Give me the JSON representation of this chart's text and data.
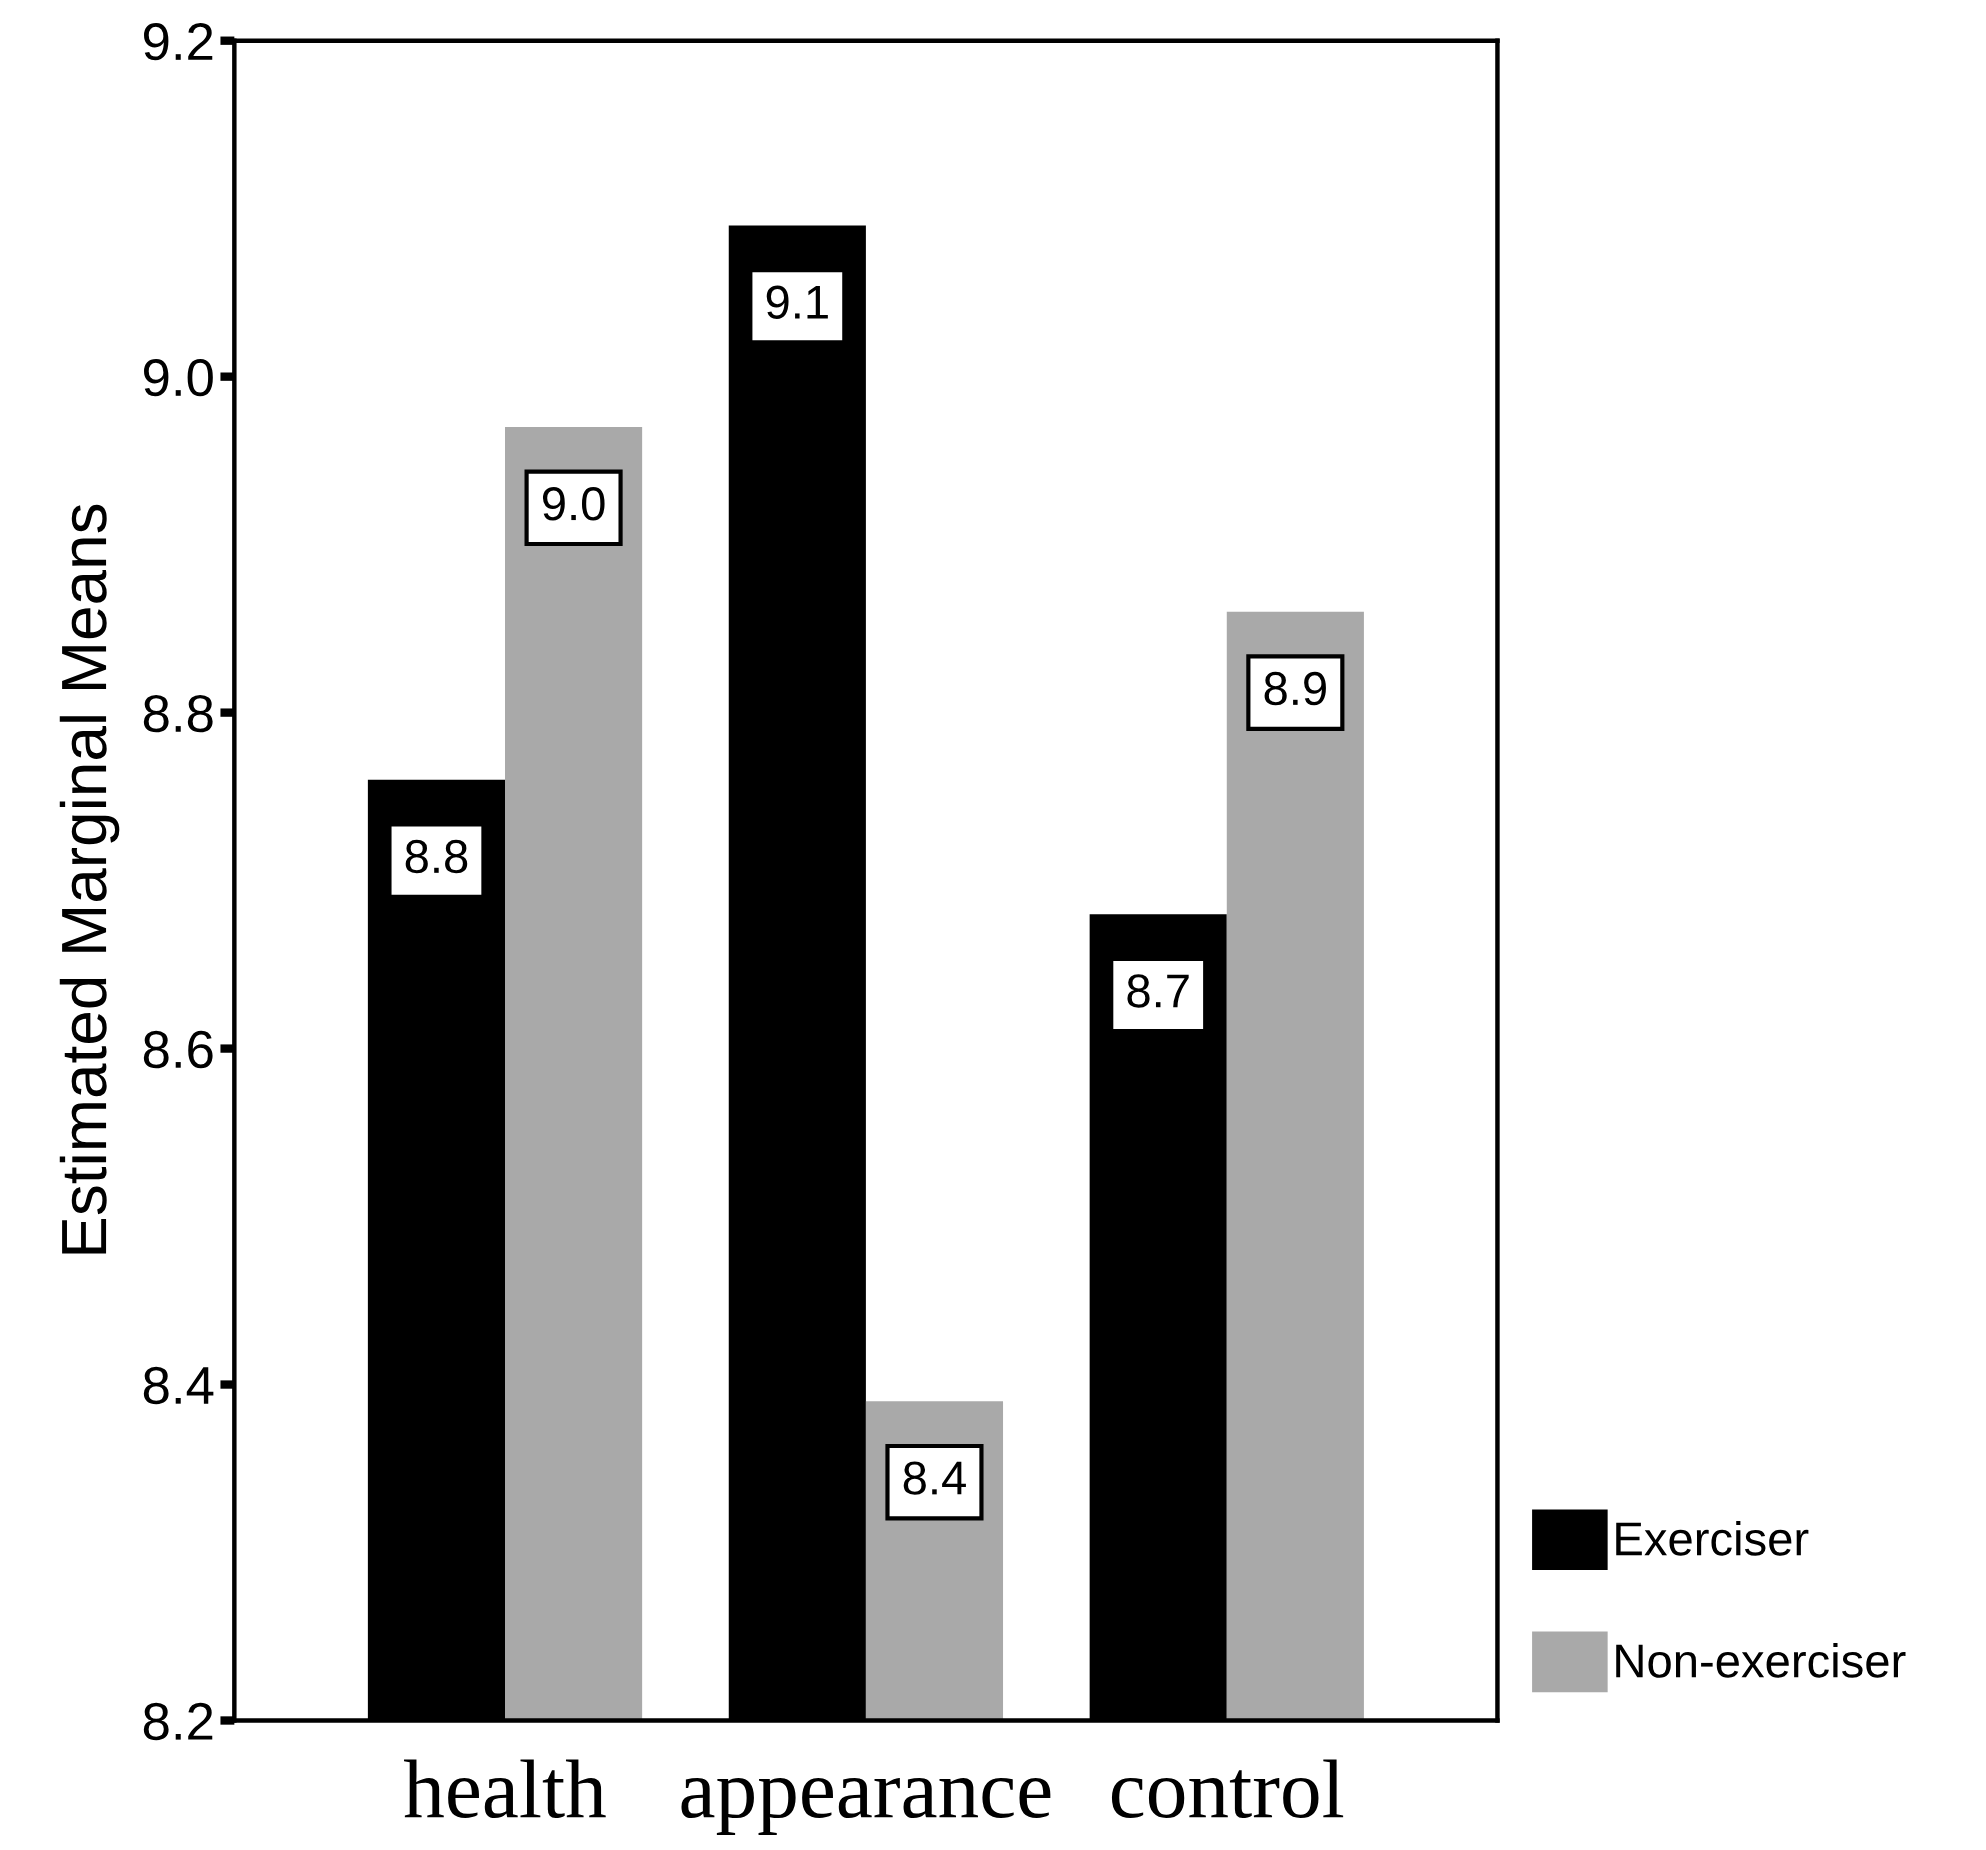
{
  "chart_data": {
    "type": "bar",
    "ylabel": "Estimated Marginal Means",
    "categories": [
      "health",
      "appearance",
      "control"
    ],
    "series": [
      {
        "name": "Exerciser",
        "color": "#000000",
        "values": [
          8.76,
          9.09,
          8.68
        ],
        "value_labels": [
          "8.8",
          "9.1",
          "8.7"
        ]
      },
      {
        "name": "Non-exerciser",
        "color": "#a9a9a9",
        "values": [
          8.97,
          8.39,
          8.86
        ],
        "value_labels": [
          "9.0",
          "8.4",
          "8.9"
        ]
      }
    ],
    "ylim": [
      8.2,
      9.2
    ],
    "yticks": [
      "8.2",
      "8.4",
      "8.6",
      "8.8",
      "9.0",
      "9.2"
    ],
    "grid": false,
    "legend": "bottom right"
  }
}
